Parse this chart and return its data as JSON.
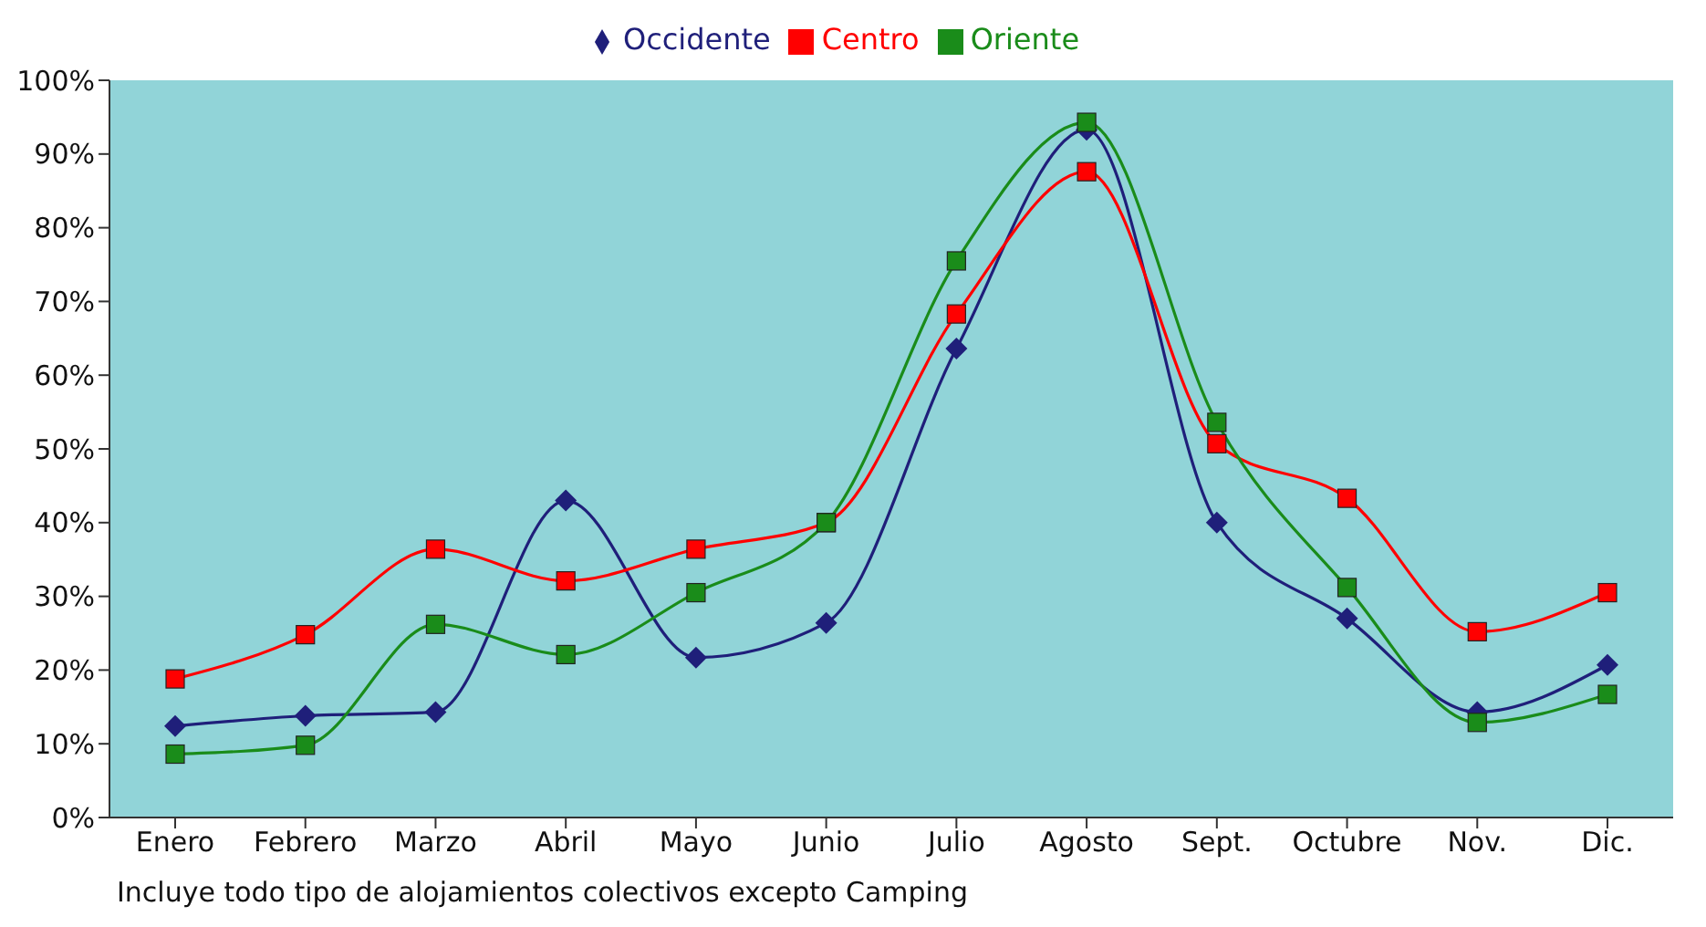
{
  "chart_data": {
    "type": "line",
    "categories": [
      "Enero",
      "Febrero",
      "Marzo",
      "Abril",
      "Mayo",
      "Junio",
      "Julio",
      "Agosto",
      "Sept.",
      "Octubre",
      "Nov.",
      "Dic."
    ],
    "series": [
      {
        "name": "Occidente",
        "color": "#1f1f7a",
        "marker": "diamond",
        "values": [
          12.4,
          13.8,
          14.3,
          43,
          21.7,
          26.4,
          63.6,
          93.3,
          40,
          27,
          14.3,
          20.7
        ]
      },
      {
        "name": "Centro",
        "color": "#ff0000",
        "marker": "square",
        "values": [
          18.8,
          24.8,
          36.4,
          32.1,
          36.4,
          40,
          68.3,
          87.6,
          50.7,
          43.3,
          25.2,
          30.5
        ]
      },
      {
        "name": "Oriente",
        "color": "#1a8c1a",
        "marker": "square",
        "values": [
          8.6,
          9.8,
          26.2,
          22.1,
          30.5,
          40,
          75.5,
          94.3,
          53.6,
          31.2,
          12.9,
          16.7
        ]
      }
    ],
    "ylim": [
      0,
      100
    ],
    "yticks": [
      {
        "value": 0,
        "label": "0%"
      },
      {
        "value": 10,
        "label": "10%"
      },
      {
        "value": 20,
        "label": "20%"
      },
      {
        "value": 30,
        "label": "30%"
      },
      {
        "value": 40,
        "label": "40%"
      },
      {
        "value": 50,
        "label": "50%"
      },
      {
        "value": 60,
        "label": "60%"
      },
      {
        "value": 70,
        "label": "70%"
      },
      {
        "value": 80,
        "label": "80%"
      },
      {
        "value": 90,
        "label": "90%"
      },
      {
        "value": 100,
        "label": "100%"
      }
    ],
    "legend": "top",
    "grid": false,
    "annotations": [
      "Incluye todo tipo de alojamientos colectivos excepto Camping"
    ]
  }
}
